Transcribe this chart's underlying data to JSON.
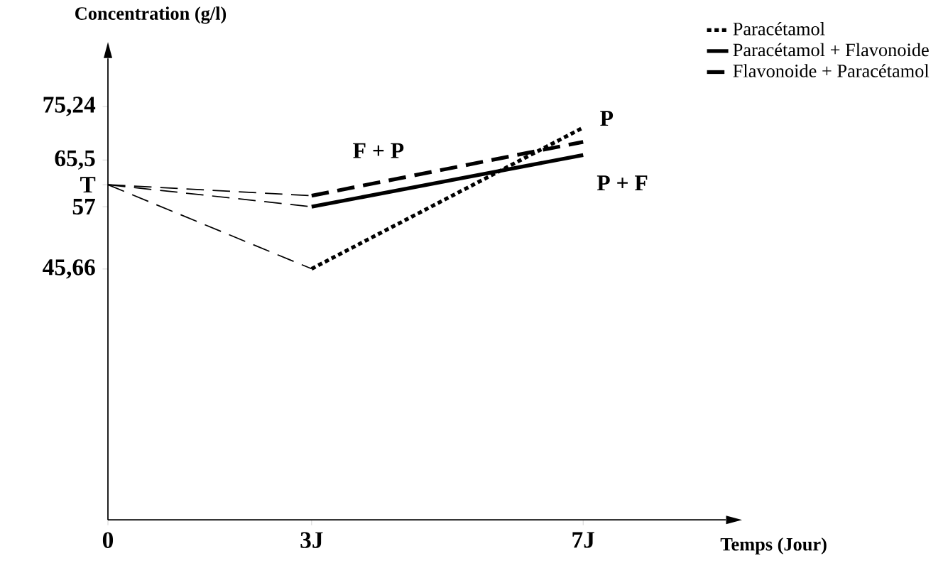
{
  "chart_data": {
    "type": "line",
    "xlabel": "Temps (Jour)",
    "ylabel": "Concentration (g/l)",
    "xlim": [
      0,
      9.1
    ],
    "ylim": [
      0,
      84
    ],
    "xticks": [
      0,
      {
        "value": 3,
        "label": "3J"
      },
      {
        "value": 7,
        "label": "7J"
      }
    ],
    "yticks": [
      {
        "value": 45.66,
        "label": "45,66"
      },
      57,
      {
        "value": 61,
        "label": "T"
      },
      {
        "value": 65.5,
        "label": "65,5"
      },
      {
        "value": 75.24,
        "label": "75,24"
      }
    ],
    "grid": false,
    "legend": "top right",
    "marker": "none",
    "series": [
      {
        "x": [
          0,
          3
        ],
        "values": [
          61,
          45.7
        ],
        "color": "#000000",
        "line_style": "dashed"
      },
      {
        "x": [
          0,
          3
        ],
        "values": [
          61,
          57
        ],
        "color": "#000000",
        "line_style": "dashed"
      },
      {
        "x": [
          0,
          3
        ],
        "values": [
          61,
          59
        ],
        "color": "#000000",
        "line_style": "dashed"
      },
      {
        "name": "Paracétamol",
        "x": [
          3,
          7
        ],
        "values": [
          45.7,
          71.4
        ],
        "color": "#000000",
        "line_style": "dotted"
      },
      {
        "name": "Paracétamol + Flavonoide",
        "x": [
          3,
          7
        ],
        "values": [
          57,
          66.4
        ],
        "color": "#000000",
        "line_style": "solid"
      },
      {
        "name": "Flavonoide + Paracétamol",
        "x": [
          3,
          7
        ],
        "values": [
          59,
          68.8
        ],
        "color": "#000000",
        "line_style": "dashed"
      }
    ],
    "annotations": [
      "P",
      "P + F",
      "F + P"
    ]
  }
}
